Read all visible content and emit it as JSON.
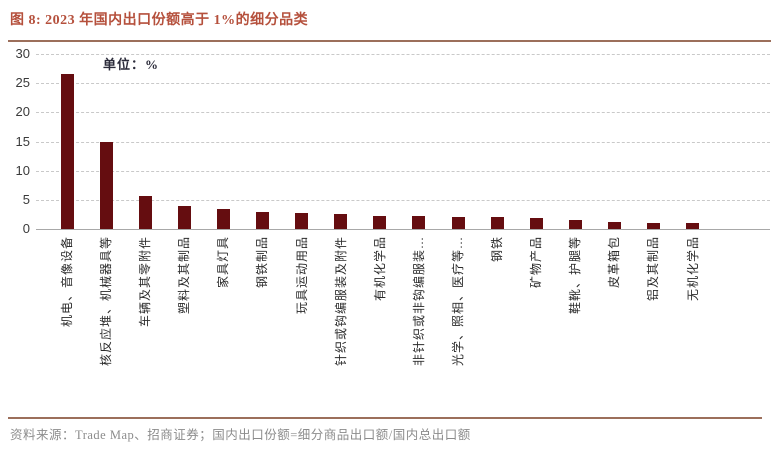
{
  "figure": {
    "title": "图 8: 2023 年国内出口份额高于 1%的细分品类",
    "unit_label": "单位：%",
    "source": "资料来源：Trade Map、招商证券；国内出口份额=细分商品出口额/国内总出口额"
  },
  "colors": {
    "bar": "#650d10",
    "title": "#b5503c",
    "rule": "#9c6f5b",
    "grid": "#c9c9c9",
    "axis": "#a8a8a8",
    "tick_text": "#3a3a3a",
    "unit_text": "#2b2b3a",
    "source_text": "#8c8c8c"
  },
  "chart_data": {
    "type": "bar",
    "title": "2023 年国内出口份额高于 1%的细分品类",
    "unit": "%",
    "categories": [
      "机电、音像设备",
      "核反应堆、机械器具等",
      "车辆及其零附件",
      "塑料及其制品",
      "家具灯具",
      "钢铁制品",
      "玩具运动用品",
      "针织或钩编服装及附件",
      "有机化学品",
      "非针织或非钩编服装…",
      "光学、照相、医疗等…",
      "钢铁",
      "矿物产品",
      "鞋靴、护腿等",
      "皮革箱包",
      "铝及其制品",
      "无机化学品"
    ],
    "values": [
      26.6,
      15.0,
      5.7,
      3.9,
      3.5,
      3.0,
      2.8,
      2.5,
      2.3,
      2.2,
      2.1,
      2.0,
      1.9,
      1.6,
      1.2,
      1.1,
      1.0
    ],
    "ylim": [
      0,
      30
    ],
    "yticks": [
      0,
      5,
      10,
      15,
      20,
      25,
      30
    ],
    "grid": "horizontal-dashed",
    "legend": "none"
  }
}
